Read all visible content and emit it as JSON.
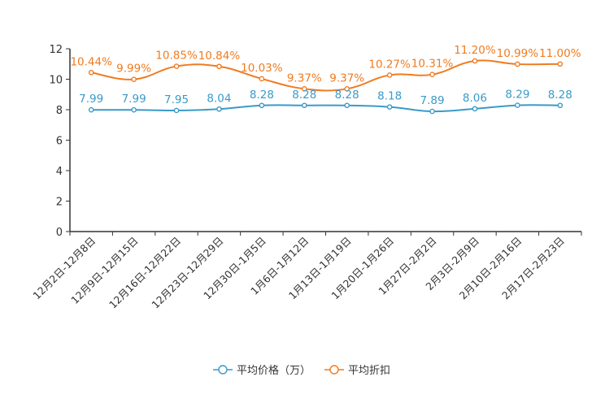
{
  "chart_data": {
    "type": "line",
    "title": "",
    "xlabel": "",
    "ylabel": "",
    "ylim": [
      0,
      12
    ],
    "yticks": [
      0,
      2,
      4,
      6,
      8,
      10,
      12
    ],
    "grid": false,
    "legend_position": "bottom",
    "categories": [
      "12月2日-12月8日",
      "12月9日-12月15日",
      "12月16日-12月22日",
      "12月23日-12月29日",
      "12月30日-1月5日",
      "1月6日-1月12日",
      "1月13日-1月19日",
      "1月20日-1月26日",
      "1月27日-2月2日",
      "2月3日-2月9日",
      "2月10日-2月16日",
      "2月17日-2月23日"
    ],
    "series": [
      {
        "name": "平均价格（万）",
        "color": "#3a9ac9",
        "values": [
          7.99,
          7.99,
          7.95,
          8.04,
          8.28,
          8.28,
          8.28,
          8.18,
          7.89,
          8.06,
          8.29,
          8.28
        ],
        "labels": [
          "7.99",
          "7.99",
          "7.95",
          "8.04",
          "8.28",
          "8.28",
          "8.28",
          "8.18",
          "7.89",
          "8.06",
          "8.29",
          "8.28"
        ]
      },
      {
        "name": "平均折扣",
        "color": "#f07b1f",
        "values": [
          10.44,
          9.99,
          10.85,
          10.84,
          10.03,
          9.37,
          9.37,
          10.27,
          10.31,
          11.2,
          10.99,
          11.0
        ],
        "labels": [
          "10.44%",
          "9.99%",
          "10.85%",
          "10.84%",
          "10.03%",
          "9.37%",
          "9.37%",
          "10.27%",
          "10.31%",
          "11.20%",
          "10.99%",
          "11.00%"
        ]
      }
    ]
  }
}
